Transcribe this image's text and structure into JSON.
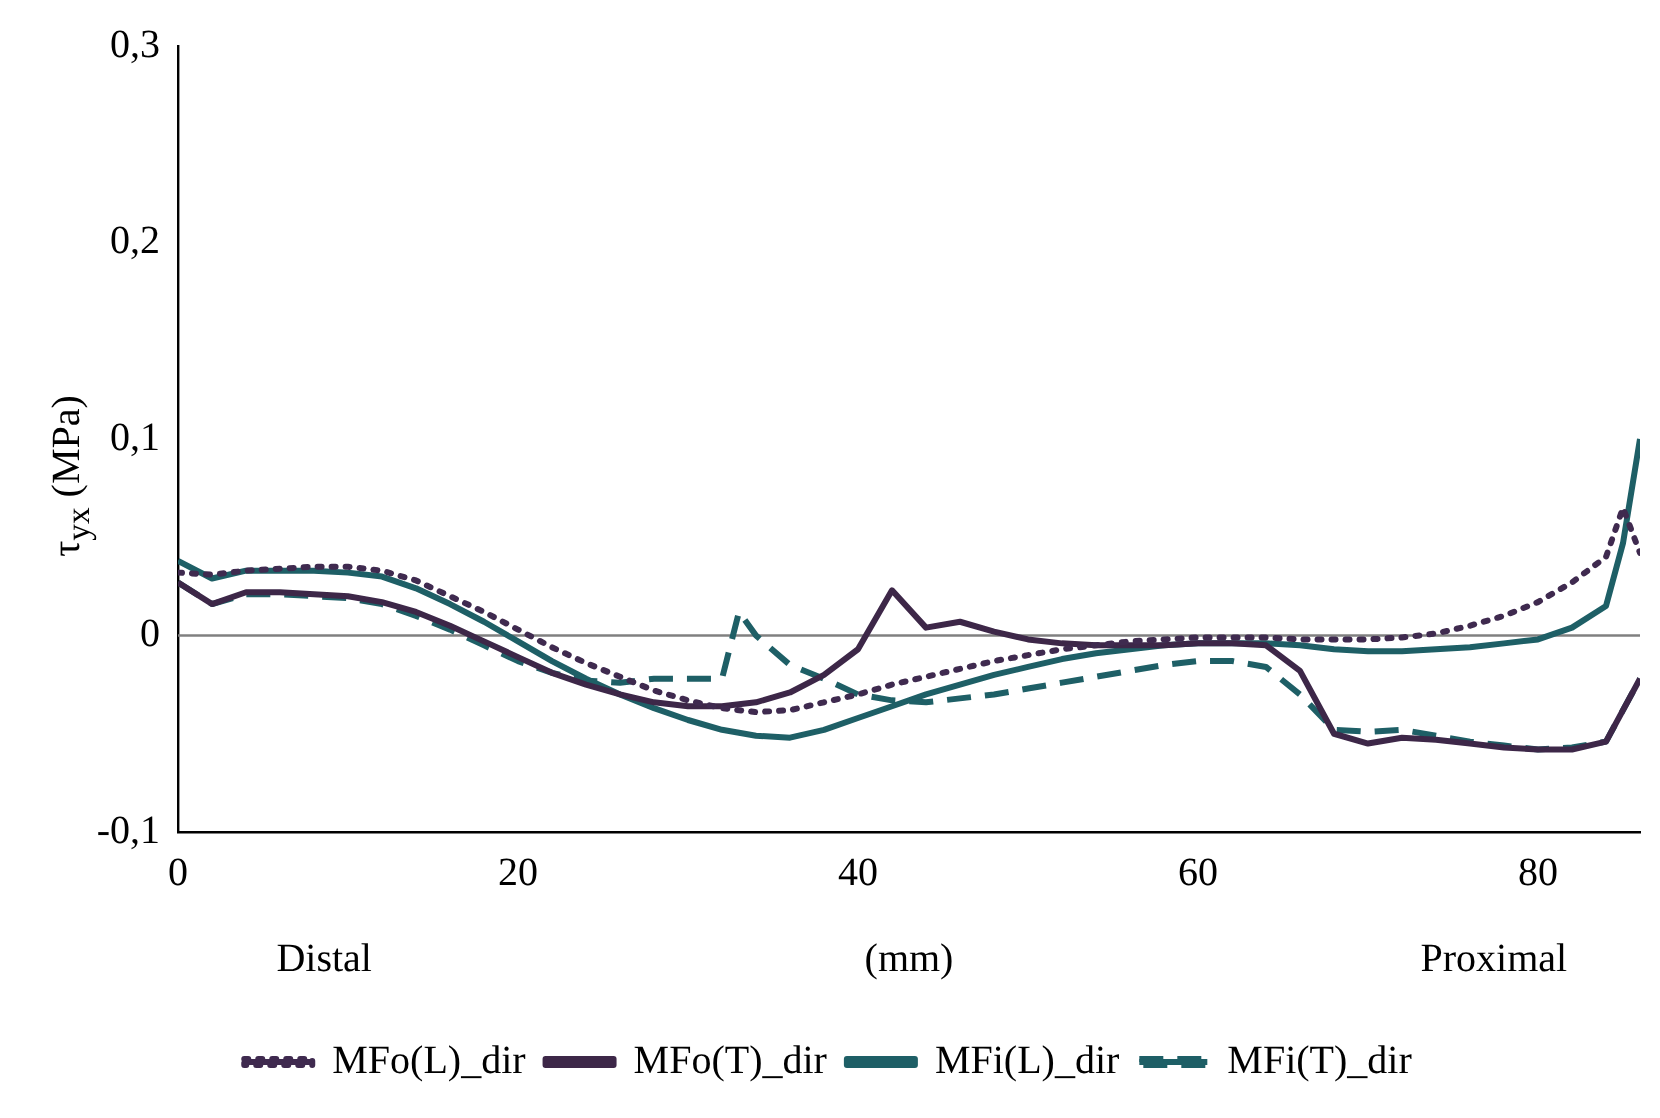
{
  "chart_data": {
    "type": "line",
    "xlabel": "(mm)",
    "ylabel": "τ$_{yx}$ (MPa)",
    "xlim": [
      0,
      86
    ],
    "xticks": [
      0,
      20,
      40,
      60,
      80
    ],
    "ylim": [
      -0.1,
      0.3
    ],
    "yticks": [
      {
        "value": -0.1,
        "label": "-0,1"
      },
      {
        "value": 0,
        "label": "0"
      },
      {
        "value": 0.1,
        "label": "0,1"
      },
      {
        "value": 0.2,
        "label": "0,2"
      },
      {
        "value": 0.3,
        "label": "0,3"
      }
    ],
    "grid": false,
    "legend": "bottom",
    "marker": "none",
    "annotations": [
      "Distal",
      "Proximal"
    ],
    "ref_lines": [
      {
        "axis": "y",
        "value": 0,
        "color": "#808080"
      }
    ],
    "series": [
      {
        "name": "MFo(L)_dir",
        "color": "#3f2a4f",
        "line_style": "dotted",
        "x": [
          0,
          2,
          4,
          6,
          8,
          10,
          12,
          14,
          16,
          18,
          20,
          22,
          24,
          26,
          28,
          30,
          32,
          34,
          36,
          38,
          40,
          42,
          44,
          46,
          48,
          50,
          52,
          54,
          56,
          58,
          60,
          62,
          64,
          66,
          68,
          70,
          72,
          74,
          76,
          78,
          80,
          82,
          84,
          85,
          86
        ],
        "values": [
          0.032,
          0.031,
          0.033,
          0.034,
          0.035,
          0.035,
          0.033,
          0.028,
          0.02,
          0.012,
          0.003,
          -0.006,
          -0.014,
          -0.021,
          -0.028,
          -0.033,
          -0.037,
          -0.039,
          -0.038,
          -0.034,
          -0.03,
          -0.025,
          -0.021,
          -0.017,
          -0.013,
          -0.01,
          -0.007,
          -0.005,
          -0.003,
          -0.002,
          -0.001,
          -0.001,
          -0.001,
          -0.002,
          -0.002,
          -0.002,
          -0.001,
          0.001,
          0.005,
          0.01,
          0.017,
          0.027,
          0.04,
          0.065,
          0.042
        ]
      },
      {
        "name": "MFo(T)_dir",
        "color": "#3d2748",
        "line_style": "solid",
        "x": [
          0,
          2,
          4,
          6,
          8,
          10,
          12,
          14,
          16,
          18,
          20,
          22,
          24,
          26,
          28,
          30,
          32,
          34,
          36,
          38,
          40,
          42,
          44,
          46,
          48,
          50,
          52,
          54,
          56,
          58,
          60,
          62,
          64,
          66,
          68,
          70,
          72,
          74,
          76,
          78,
          80,
          82,
          84,
          86
        ],
        "values": [
          0.027,
          0.016,
          0.022,
          0.022,
          0.021,
          0.02,
          0.017,
          0.012,
          0.005,
          -0.003,
          -0.011,
          -0.019,
          -0.025,
          -0.03,
          -0.034,
          -0.036,
          -0.036,
          -0.034,
          -0.029,
          -0.02,
          -0.007,
          0.023,
          0.004,
          0.007,
          0.002,
          -0.002,
          -0.004,
          -0.005,
          -0.005,
          -0.005,
          -0.004,
          -0.004,
          -0.005,
          -0.018,
          -0.05,
          -0.055,
          -0.052,
          -0.053,
          -0.055,
          -0.057,
          -0.058,
          -0.058,
          -0.054,
          -0.022
        ]
      },
      {
        "name": "MFi(L)_dir",
        "color": "#1e5f66",
        "line_style": "solid",
        "x": [
          0,
          2,
          4,
          6,
          8,
          10,
          12,
          14,
          16,
          18,
          20,
          22,
          24,
          26,
          28,
          30,
          32,
          34,
          36,
          38,
          40,
          42,
          44,
          46,
          48,
          50,
          52,
          54,
          56,
          58,
          60,
          62,
          64,
          66,
          68,
          70,
          72,
          74,
          76,
          78,
          80,
          82,
          84,
          85,
          86
        ],
        "values": [
          0.038,
          0.029,
          0.033,
          0.033,
          0.033,
          0.032,
          0.03,
          0.024,
          0.016,
          0.007,
          -0.003,
          -0.013,
          -0.022,
          -0.03,
          -0.037,
          -0.043,
          -0.048,
          -0.051,
          -0.052,
          -0.048,
          -0.042,
          -0.036,
          -0.03,
          -0.025,
          -0.02,
          -0.016,
          -0.012,
          -0.009,
          -0.007,
          -0.005,
          -0.004,
          -0.004,
          -0.004,
          -0.005,
          -0.007,
          -0.008,
          -0.008,
          -0.007,
          -0.006,
          -0.004,
          -0.002,
          0.004,
          0.015,
          0.047,
          0.1
        ]
      },
      {
        "name": "MFi(T)_dir",
        "color": "#1e5f66",
        "line_style": "dashed",
        "x": [
          0,
          2,
          4,
          6,
          8,
          10,
          12,
          14,
          16,
          18,
          20,
          22,
          24,
          26,
          28,
          30,
          32,
          33,
          34,
          36,
          38,
          40,
          42,
          44,
          46,
          48,
          50,
          52,
          54,
          56,
          58,
          60,
          62,
          64,
          66,
          68,
          70,
          72,
          74,
          76,
          78,
          80,
          82,
          84,
          86
        ],
        "values": [
          0.027,
          0.016,
          0.021,
          0.021,
          0.02,
          0.019,
          0.016,
          0.01,
          0.003,
          -0.005,
          -0.013,
          -0.019,
          -0.023,
          -0.024,
          -0.022,
          -0.022,
          -0.022,
          0.012,
          0.0,
          -0.015,
          -0.022,
          -0.03,
          -0.033,
          -0.034,
          -0.032,
          -0.03,
          -0.027,
          -0.024,
          -0.021,
          -0.018,
          -0.015,
          -0.013,
          -0.013,
          -0.016,
          -0.03,
          -0.048,
          -0.049,
          -0.048,
          -0.051,
          -0.054,
          -0.056,
          -0.058,
          -0.057,
          -0.054,
          -0.022
        ]
      }
    ]
  }
}
